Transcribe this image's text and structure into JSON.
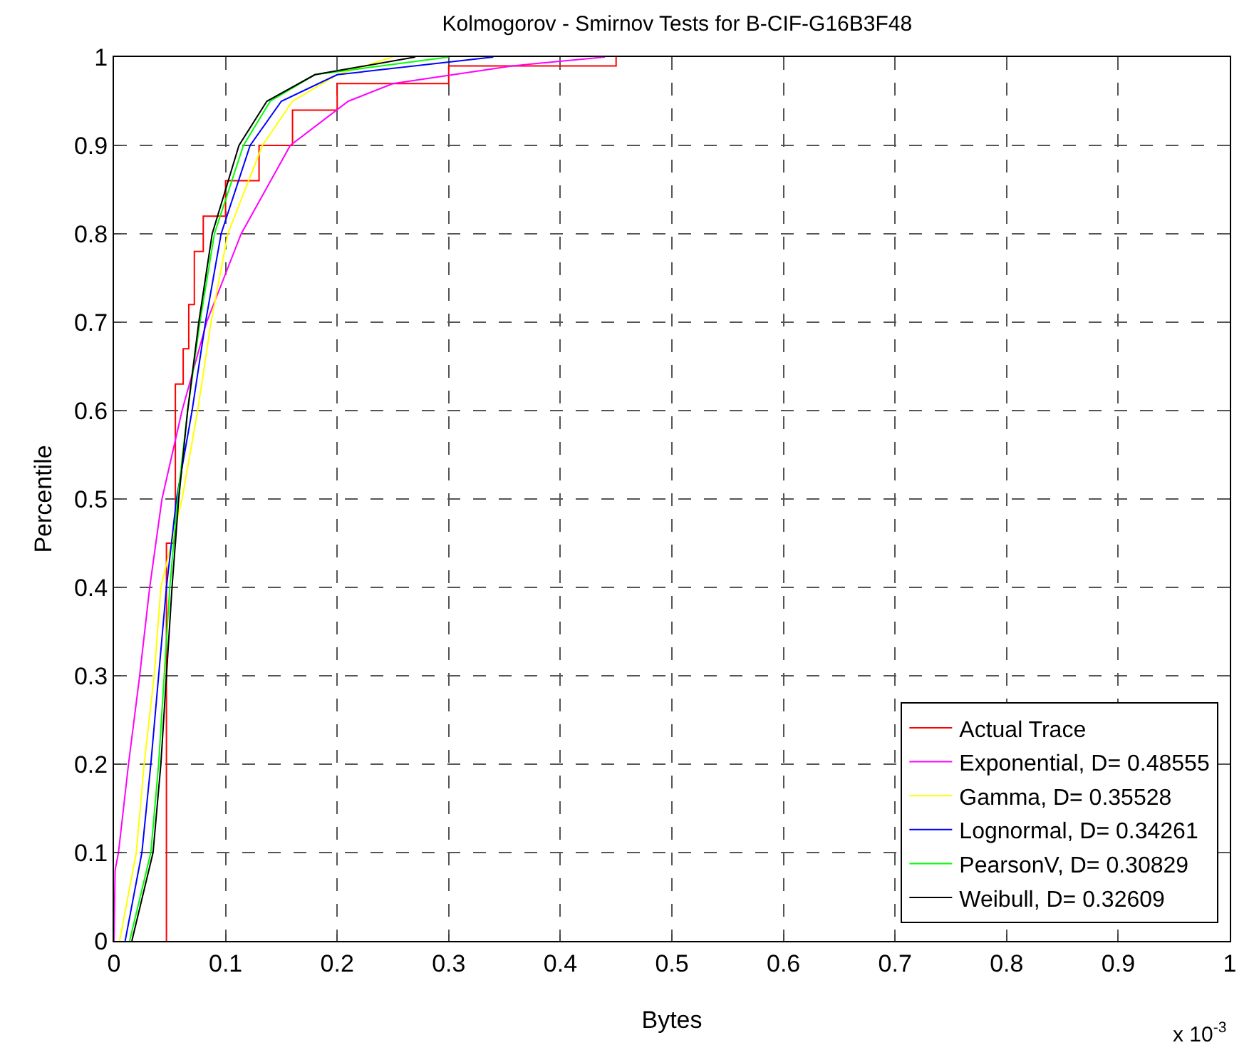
{
  "chart_data": {
    "type": "line",
    "title": "Kolmogorov - Smirnov Tests for B-CIF-G16B3F48",
    "xlabel": "Bytes",
    "ylabel": "Percentile",
    "annotations": [
      "x 10$^{-3}$"
    ],
    "xlim": [
      0,
      1
    ],
    "xticks": [
      0,
      0.1,
      0.2,
      0.3,
      0.4,
      0.5,
      0.6,
      0.7,
      0.8,
      0.9,
      1
    ],
    "ylim": [
      0,
      1
    ],
    "yticks": [
      0,
      0.1,
      0.2,
      0.3,
      0.4,
      0.5,
      0.6,
      0.7,
      0.8,
      0.9,
      1
    ],
    "grid": true,
    "legend": "bottom right",
    "line_style": "solid",
    "marker": "none",
    "series": [
      {
        "name": "Actual Trace",
        "type": "step",
        "color": "#ff0000",
        "x": [
          0.047,
          0.047,
          0.055,
          0.062,
          0.067,
          0.072,
          0.08,
          0.1,
          0.13,
          0.16,
          0.2,
          0.3,
          0.45
        ],
        "values": [
          0,
          0.45,
          0.63,
          0.67,
          0.72,
          0.78,
          0.82,
          0.86,
          0.9,
          0.94,
          0.97,
          0.99,
          1
        ]
      },
      {
        "name": "Exponential, D= 0.48555",
        "color": "#ff00ff",
        "x": [
          0,
          0.001,
          0.004,
          0.013,
          0.023,
          0.032,
          0.043,
          0.061,
          0.083,
          0.114,
          0.158,
          0.21,
          0.25,
          0.357,
          0.44
        ],
        "values": [
          0,
          0.08,
          0.1,
          0.2,
          0.3,
          0.4,
          0.5,
          0.6,
          0.7,
          0.8,
          0.9,
          0.95,
          0.97,
          0.99,
          1
        ]
      },
      {
        "name": "Gamma, D= 0.35528",
        "color": "#ffff00",
        "x": [
          0.005,
          0.02,
          0.027,
          0.036,
          0.042,
          0.061,
          0.075,
          0.087,
          0.102,
          0.133,
          0.16,
          0.2,
          0.25
        ],
        "values": [
          0,
          0.1,
          0.2,
          0.3,
          0.4,
          0.5,
          0.6,
          0.7,
          0.8,
          0.9,
          0.95,
          0.98,
          1
        ]
      },
      {
        "name": "Lognormal, D= 0.34261",
        "color": "#0000ff",
        "x": [
          0.01,
          0.025,
          0.033,
          0.04,
          0.047,
          0.056,
          0.07,
          0.082,
          0.096,
          0.122,
          0.15,
          0.2,
          0.34
        ],
        "values": [
          0,
          0.1,
          0.2,
          0.3,
          0.4,
          0.5,
          0.6,
          0.7,
          0.8,
          0.9,
          0.95,
          0.98,
          1
        ]
      },
      {
        "name": "PearsonV, D= 0.30829",
        "color": "#00ff00",
        "x": [
          0.014,
          0.033,
          0.04,
          0.045,
          0.05,
          0.057,
          0.066,
          0.077,
          0.09,
          0.116,
          0.14,
          0.18,
          0.3
        ],
        "values": [
          0,
          0.1,
          0.2,
          0.3,
          0.4,
          0.5,
          0.6,
          0.7,
          0.8,
          0.9,
          0.95,
          0.98,
          1
        ]
      },
      {
        "name": "Weibull, D= 0.32609",
        "color": "#000000",
        "x": [
          0.016,
          0.035,
          0.042,
          0.047,
          0.052,
          0.058,
          0.066,
          0.076,
          0.088,
          0.112,
          0.137,
          0.18,
          0.27
        ],
        "values": [
          0,
          0.1,
          0.2,
          0.3,
          0.4,
          0.5,
          0.6,
          0.7,
          0.8,
          0.9,
          0.95,
          0.98,
          1
        ]
      }
    ]
  }
}
